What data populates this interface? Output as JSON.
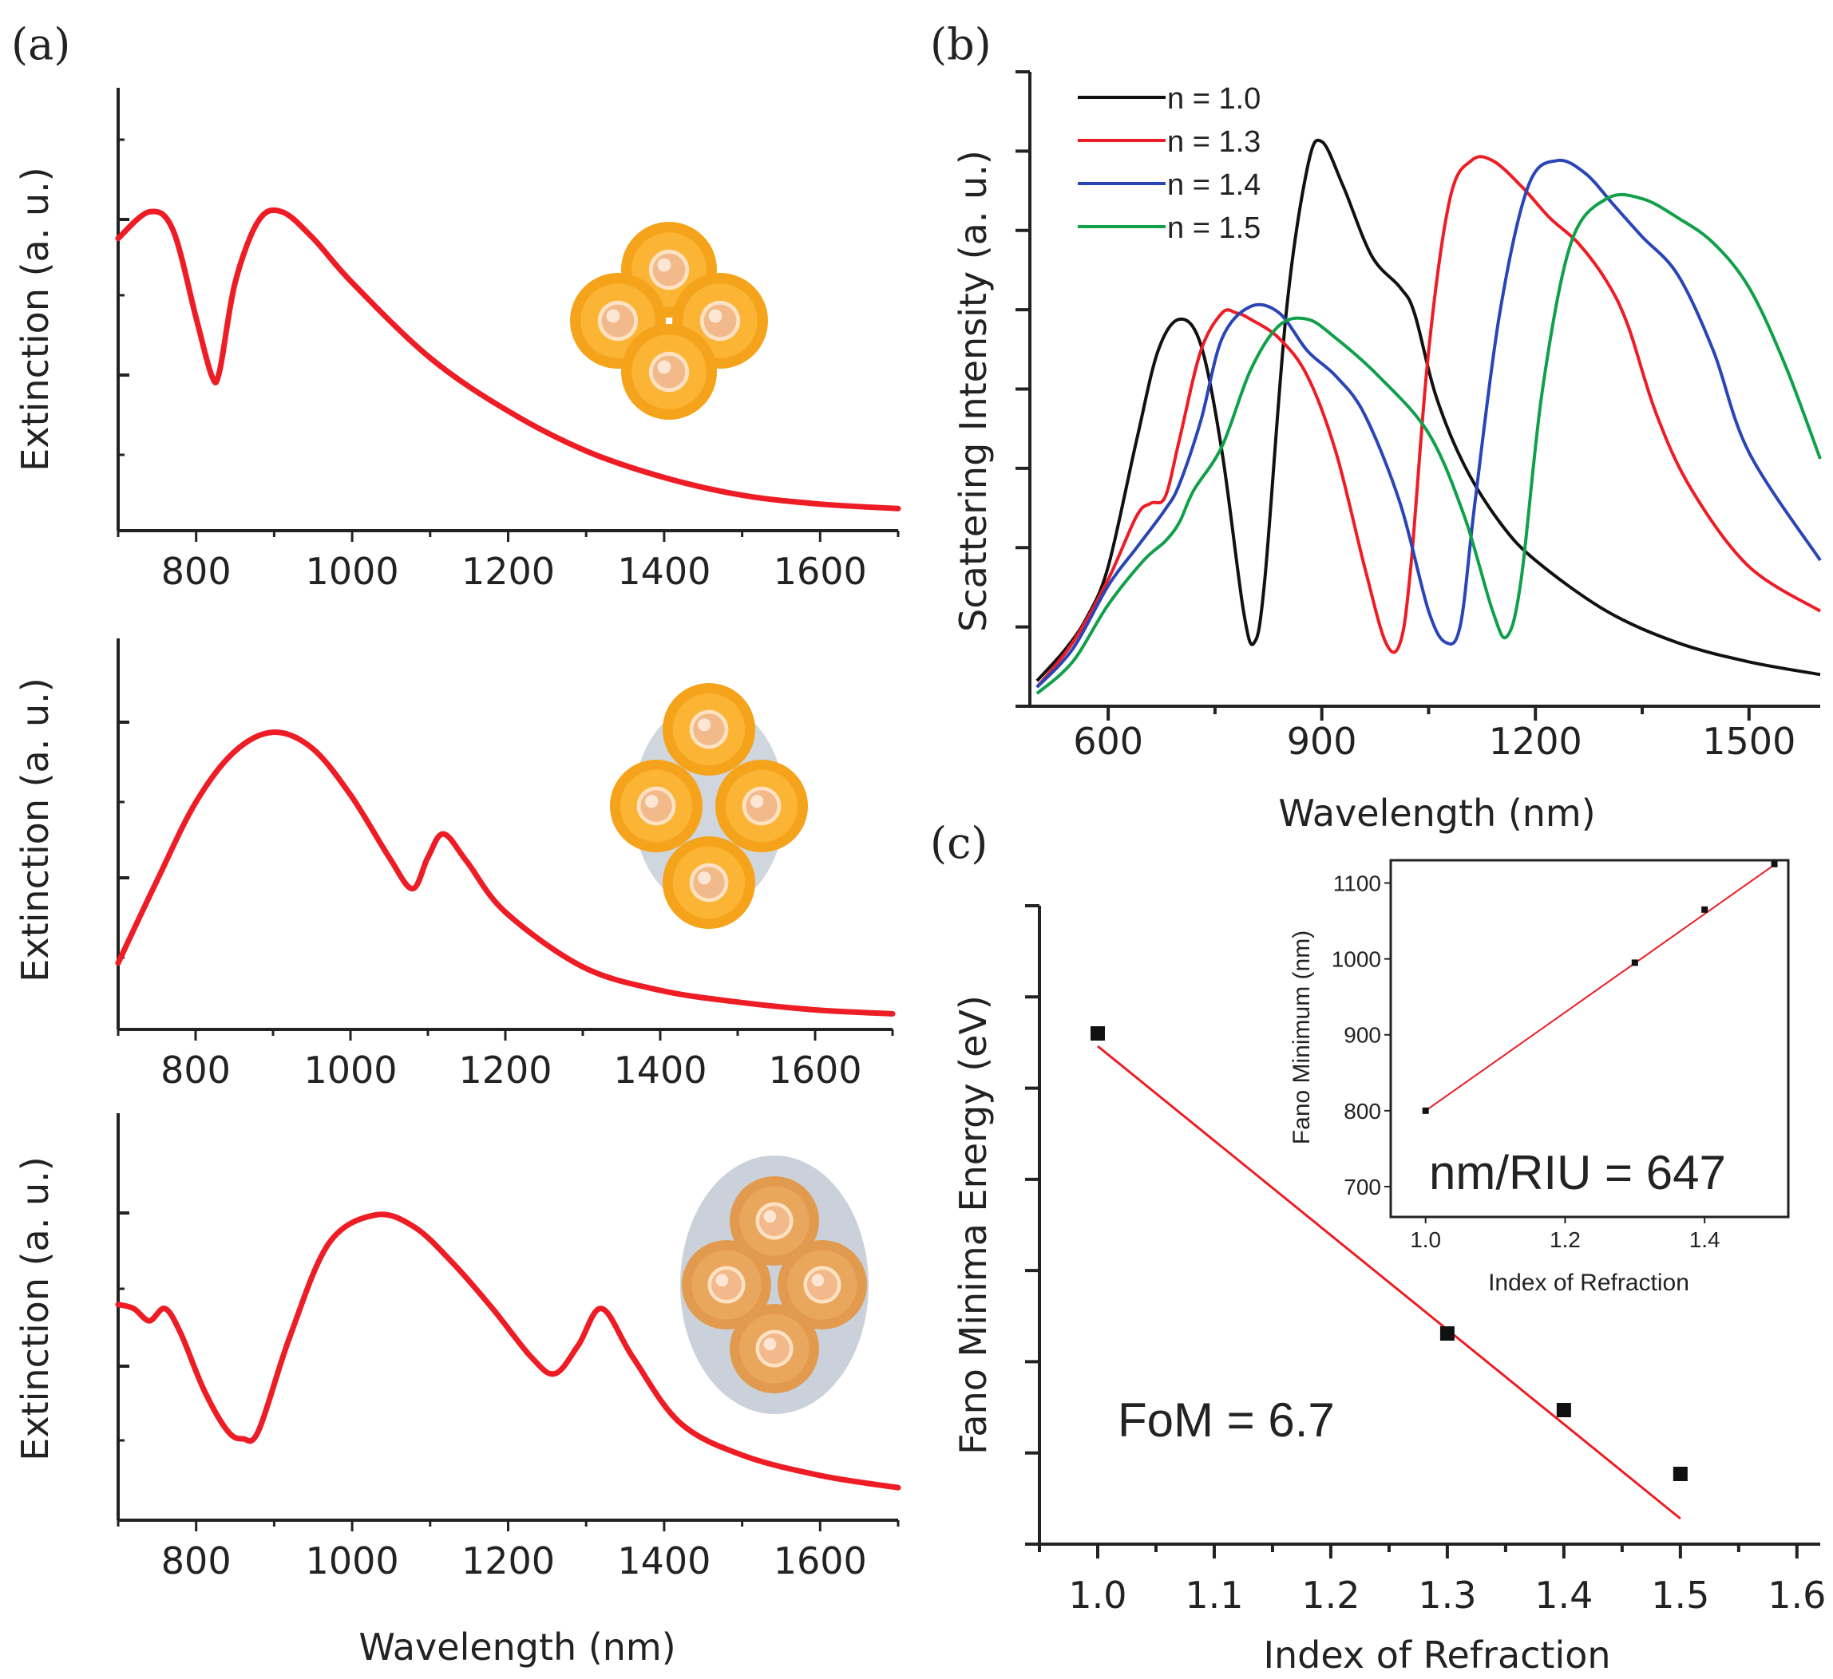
{
  "colors": {
    "red": "#ee1c24",
    "black": "#111111",
    "blue": "#2a45b6",
    "green": "#10a04a",
    "shell": "#f5a31a",
    "shell_light": "#ffc34a",
    "core": "#f2b98a",
    "matrix": "#c4ccd6",
    "axis": "#222222"
  },
  "chart_data": [
    {
      "id": "a1",
      "panel_label": "(a)",
      "type": "line",
      "title": "",
      "xlabel": "",
      "ylabel": "Extinction (a. u.)",
      "xlim": [
        700,
        1700
      ],
      "ylim": [
        0,
        1
      ],
      "xticks": [
        800,
        1000,
        1200,
        1400,
        1600
      ],
      "inset_icon": "nanoparticle-tetramer-icon",
      "series": [
        {
          "name": "extinction",
          "color": "#ee1c24",
          "x": [
            700,
            740,
            770,
            800,
            820,
            830,
            850,
            880,
            910,
            950,
            1000,
            1100,
            1200,
            1300,
            1400,
            1500,
            1600,
            1700
          ],
          "y": [
            0.66,
            0.72,
            0.68,
            0.48,
            0.35,
            0.36,
            0.56,
            0.7,
            0.72,
            0.66,
            0.56,
            0.39,
            0.27,
            0.18,
            0.12,
            0.08,
            0.06,
            0.05
          ]
        }
      ]
    },
    {
      "id": "a2",
      "panel_label": "",
      "type": "line",
      "title": "",
      "xlabel": "",
      "ylabel": "Extinction (a. u.)",
      "xlim": [
        700,
        1700
      ],
      "ylim": [
        0,
        1
      ],
      "xticks": [
        800,
        1000,
        1200,
        1400,
        1600
      ],
      "inset_icon": "tetramer-in-matrix-icon",
      "series": [
        {
          "name": "extinction",
          "color": "#ee1c24",
          "x": [
            700,
            750,
            800,
            850,
            900,
            950,
            1000,
            1050,
            1080,
            1100,
            1120,
            1150,
            1200,
            1300,
            1400,
            1500,
            1600,
            1700
          ],
          "y": [
            0.17,
            0.38,
            0.58,
            0.71,
            0.76,
            0.72,
            0.6,
            0.44,
            0.36,
            0.44,
            0.5,
            0.43,
            0.3,
            0.16,
            0.1,
            0.07,
            0.05,
            0.04
          ]
        }
      ]
    },
    {
      "id": "a3",
      "panel_label": "",
      "type": "line",
      "title": "",
      "xlabel": "Wavelength (nm)",
      "ylabel": "Extinction (a. u.)",
      "xlim": [
        700,
        1700
      ],
      "ylim": [
        0,
        1
      ],
      "xticks": [
        800,
        1000,
        1200,
        1400,
        1600
      ],
      "inset_icon": "embedded-tetramer-icon",
      "series": [
        {
          "name": "extinction",
          "color": "#ee1c24",
          "x": [
            700,
            720,
            740,
            760,
            780,
            810,
            840,
            860,
            880,
            920,
            970,
            1030,
            1080,
            1130,
            1180,
            1230,
            1260,
            1290,
            1320,
            1360,
            1420,
            1500,
            1600,
            1700
          ],
          "y": [
            0.53,
            0.52,
            0.49,
            0.52,
            0.46,
            0.32,
            0.22,
            0.2,
            0.22,
            0.45,
            0.68,
            0.75,
            0.72,
            0.63,
            0.52,
            0.4,
            0.36,
            0.43,
            0.52,
            0.4,
            0.24,
            0.16,
            0.11,
            0.08
          ]
        }
      ]
    },
    {
      "id": "b",
      "panel_label": "(b)",
      "type": "line",
      "title": "",
      "xlabel": "Wavelength (nm)",
      "ylabel": "Scattering Intensity (a. u.)",
      "xlim": [
        490,
        1600
      ],
      "ylim": [
        0,
        1
      ],
      "xticks": [
        600,
        900,
        1200,
        1500
      ],
      "legend_position": "top-left",
      "series": [
        {
          "name": "n = 1.0",
          "color": "#111111",
          "x": [
            500,
            540,
            570,
            600,
            640,
            670,
            700,
            730,
            760,
            790,
            805,
            820,
            850,
            880,
            900,
            930,
            970,
            1010,
            1030,
            1060,
            1100,
            1150,
            1200,
            1300,
            1400,
            1500,
            1600
          ],
          "y": [
            0.04,
            0.09,
            0.14,
            0.22,
            0.42,
            0.56,
            0.61,
            0.57,
            0.4,
            0.15,
            0.1,
            0.2,
            0.62,
            0.85,
            0.89,
            0.82,
            0.71,
            0.66,
            0.62,
            0.49,
            0.38,
            0.29,
            0.23,
            0.15,
            0.1,
            0.07,
            0.05
          ]
        },
        {
          "name": "n = 1.3",
          "color": "#ee1c24",
          "x": [
            500,
            550,
            600,
            640,
            660,
            680,
            700,
            730,
            760,
            780,
            800,
            840,
            880,
            920,
            960,
            990,
            1010,
            1025,
            1050,
            1080,
            1110,
            1140,
            1180,
            1220,
            1260,
            1300,
            1330,
            1370,
            1420,
            1500,
            1600
          ],
          "y": [
            0.03,
            0.1,
            0.2,
            0.3,
            0.32,
            0.33,
            0.42,
            0.56,
            0.62,
            0.62,
            0.61,
            0.58,
            0.52,
            0.4,
            0.22,
            0.1,
            0.1,
            0.22,
            0.56,
            0.8,
            0.86,
            0.86,
            0.82,
            0.77,
            0.73,
            0.67,
            0.6,
            0.46,
            0.34,
            0.22,
            0.15
          ]
        },
        {
          "name": "n = 1.4",
          "color": "#2a45b6",
          "x": [
            500,
            550,
            600,
            640,
            680,
            700,
            730,
            760,
            800,
            840,
            880,
            920,
            960,
            1010,
            1050,
            1075,
            1095,
            1115,
            1150,
            1190,
            1230,
            1270,
            1310,
            1350,
            1400,
            1450,
            1500,
            1600
          ],
          "y": [
            0.03,
            0.09,
            0.19,
            0.25,
            0.31,
            0.35,
            0.45,
            0.58,
            0.63,
            0.62,
            0.56,
            0.52,
            0.46,
            0.32,
            0.15,
            0.1,
            0.13,
            0.32,
            0.62,
            0.82,
            0.86,
            0.84,
            0.79,
            0.74,
            0.68,
            0.56,
            0.4,
            0.23
          ]
        },
        {
          "name": "n = 1.5",
          "color": "#10a04a",
          "x": [
            500,
            550,
            600,
            650,
            680,
            700,
            720,
            760,
            800,
            840,
            880,
            920,
            980,
            1050,
            1100,
            1140,
            1160,
            1180,
            1210,
            1250,
            1300,
            1350,
            1400,
            1450,
            1500,
            1550,
            1600
          ],
          "y": [
            0.02,
            0.07,
            0.16,
            0.23,
            0.26,
            0.29,
            0.34,
            0.41,
            0.53,
            0.6,
            0.61,
            0.58,
            0.52,
            0.43,
            0.3,
            0.15,
            0.11,
            0.2,
            0.5,
            0.73,
            0.8,
            0.8,
            0.77,
            0.73,
            0.66,
            0.54,
            0.39
          ]
        }
      ]
    },
    {
      "id": "c",
      "panel_label": "(c)",
      "type": "scatter",
      "title": "",
      "xlabel": "Index of Refraction",
      "ylabel": "Fano Minima Energy (eV)",
      "xlim": [
        0.95,
        1.62
      ],
      "ylim": [
        0,
        1
      ],
      "xticks": [
        "1.0",
        "1.1",
        "1.2",
        "1.3",
        "1.4",
        "1.5",
        "1.6"
      ],
      "annotation": "FoM = 6.7",
      "series": [
        {
          "name": "data",
          "color": "#111111",
          "x": [
            1.0,
            1.3,
            1.4,
            1.5
          ],
          "y": [
            0.8,
            0.33,
            0.21,
            0.11
          ]
        },
        {
          "name": "fit",
          "color": "#ee1c24",
          "x": [
            1.0,
            1.5
          ],
          "y": [
            0.78,
            0.04
          ]
        }
      ]
    },
    {
      "id": "c-inset",
      "panel_label": "",
      "type": "scatter",
      "title": "",
      "xlabel": "Index of Refraction",
      "ylabel": "Fano Minimum (nm)",
      "xlim": [
        0.95,
        1.52
      ],
      "ylim": [
        660,
        1130
      ],
      "xticks": [
        "1.0",
        "1.2",
        "1.4"
      ],
      "yticks": [
        "700",
        "800",
        "900",
        "1000",
        "1100"
      ],
      "annotation": "nm/RIU = 647",
      "series": [
        {
          "name": "data",
          "color": "#111111",
          "x": [
            1.0,
            1.3,
            1.4,
            1.5
          ],
          "y": [
            800,
            995,
            1065,
            1125
          ]
        },
        {
          "name": "fit",
          "color": "#ee1c24",
          "x": [
            1.0,
            1.5
          ],
          "y": [
            800,
            1124
          ]
        }
      ]
    }
  ]
}
